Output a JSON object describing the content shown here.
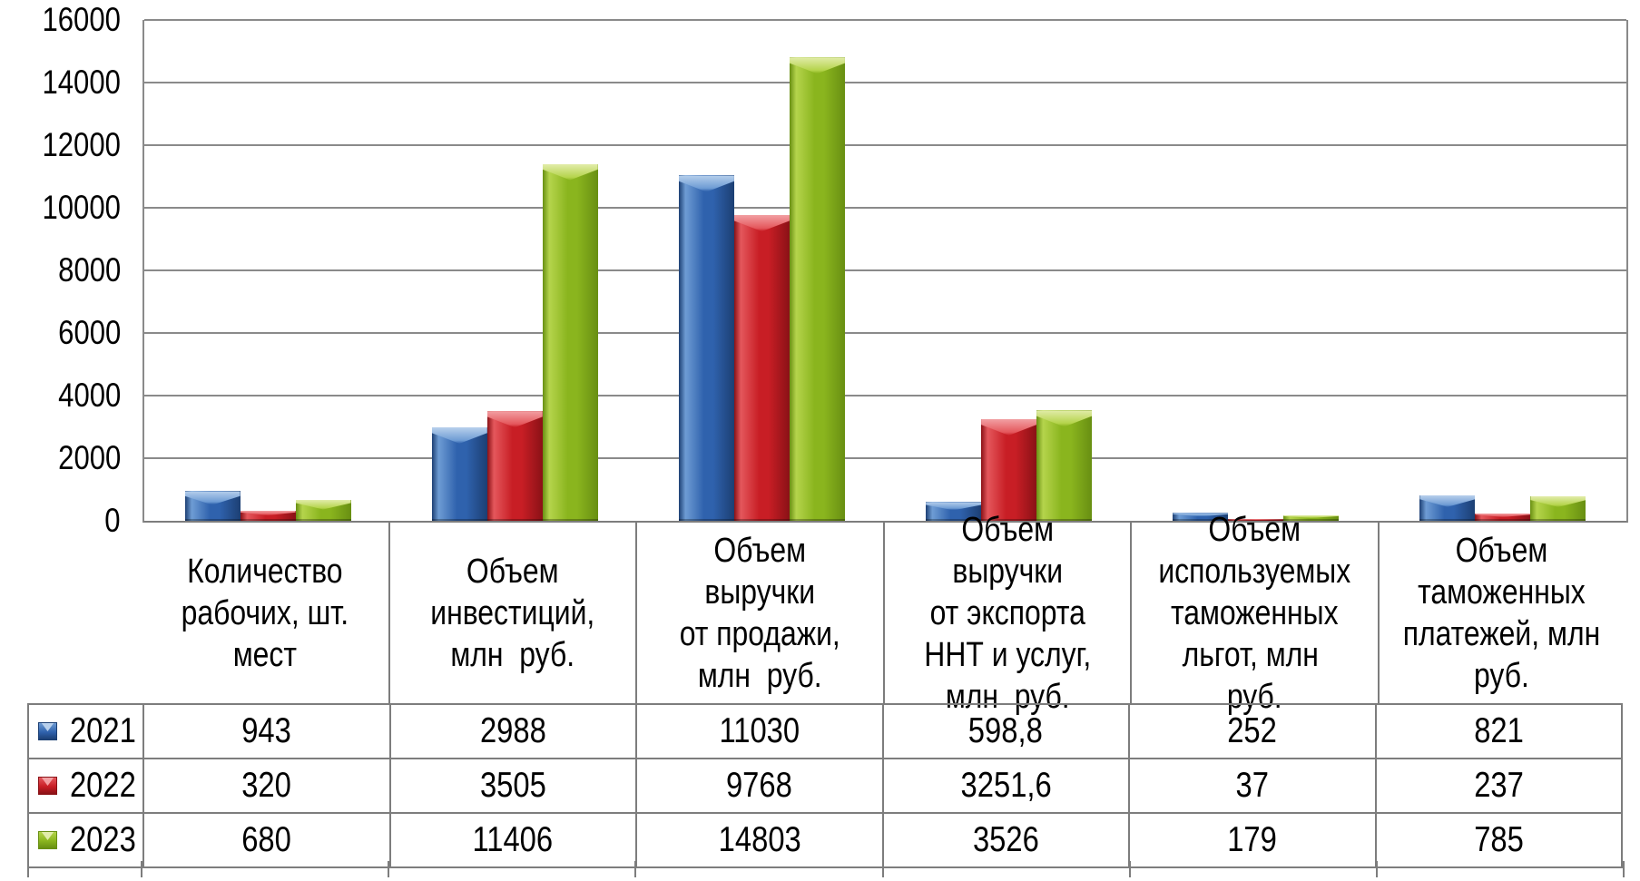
{
  "chart_data": {
    "type": "bar",
    "title": "",
    "xlabel": "",
    "ylabel": "",
    "ylim": [
      0,
      16000
    ],
    "ytick_step": 2000,
    "yticks": [
      "0",
      "2000",
      "4000",
      "6000",
      "8000",
      "10000",
      "12000",
      "14000",
      "16000"
    ],
    "grid": true,
    "legend_position": "table-left",
    "categories": [
      "Количество\nрабочих, шт.\nмест",
      "Объем\nинвестиций,\nмлн  руб.",
      "Объем выручки\nот продажи,\nмлн  руб.",
      "Объем выручки\nот экспорта\nННТ и услуг,\nмлн  руб.",
      "Объем\nиспользуемых\nтаможенных\nльгот, млн  руб.",
      "Объем\nтаможенных\nплатежей, млн\nруб."
    ],
    "series": [
      {
        "name": "2021",
        "values": [
          943,
          2988,
          11030,
          598.8,
          252,
          821
        ],
        "display": [
          "943",
          "2988",
          "11030",
          "598,8",
          "252",
          "821"
        ],
        "colors": {
          "main": "#2f62ad",
          "light": "#6e9cd4",
          "lighter": "#b8d0ec",
          "dark": "#1c3f73"
        }
      },
      {
        "name": "2022",
        "values": [
          320,
          3505,
          9768,
          3251.6,
          37,
          237
        ],
        "display": [
          "320",
          "3505",
          "9768",
          "3251,6",
          "37",
          "237"
        ],
        "colors": {
          "main": "#c81e25",
          "light": "#e4575c",
          "lighter": "#f2a0a3",
          "dark": "#8a1116"
        }
      },
      {
        "name": "2023",
        "values": [
          680,
          11406,
          14803,
          3526,
          179,
          785
        ],
        "display": [
          "680",
          "11406",
          "14803",
          "3526",
          "179",
          "785"
        ],
        "colors": {
          "main": "#8ab51e",
          "light": "#b5d44c",
          "lighter": "#e2ecaa",
          "dark": "#688f12"
        }
      }
    ]
  },
  "style": {
    "gridline_color": "#8a8a8a",
    "border_color": "#7d7d7d",
    "background": "#ffffff",
    "text_color": "#000000"
  }
}
